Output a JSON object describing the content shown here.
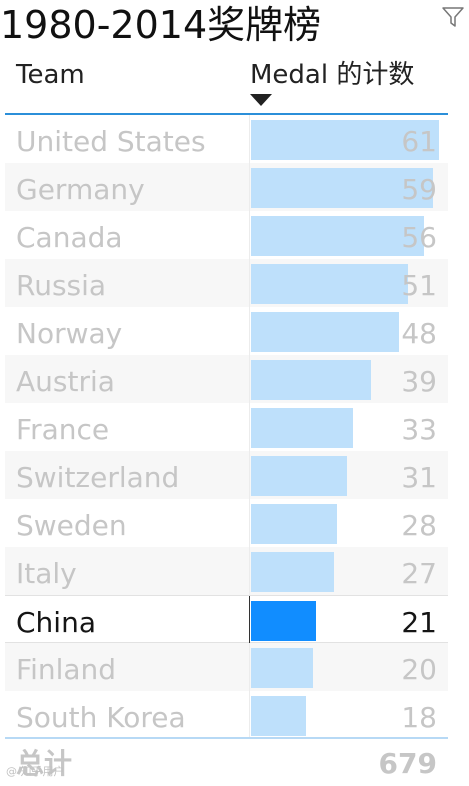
{
  "title": "1980-2014奖牌榜",
  "header": {
    "team_label": "Team",
    "medal_label": "Medal 的计数"
  },
  "icons": {
    "filter": "filter-icon",
    "sort": "sort-descending-icon"
  },
  "colors": {
    "bar": "#bee0fb",
    "bar_highlight": "#118dff",
    "header_line": "#2b8fd9"
  },
  "highlighted_team": "China",
  "chart_data": {
    "type": "bar",
    "orientation": "horizontal",
    "categories": [
      "United States",
      "Germany",
      "Canada",
      "Russia",
      "Norway",
      "Austria",
      "France",
      "Switzerland",
      "Sweden",
      "Italy",
      "China",
      "Finland",
      "South Korea"
    ],
    "values": [
      61,
      59,
      56,
      51,
      48,
      39,
      33,
      31,
      28,
      27,
      21,
      20,
      18
    ],
    "xlim": [
      0,
      61
    ],
    "sort": "descending"
  },
  "total": {
    "label": "总计",
    "value": "679"
  },
  "watermark": "@ 知乎用户"
}
